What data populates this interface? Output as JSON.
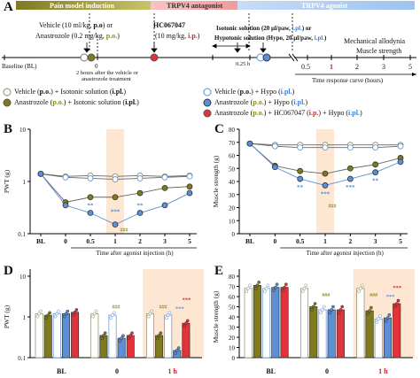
{
  "panelA": {
    "letter": "A",
    "bar_pain": "Pain model induction",
    "bar_antag": "TRPV4 antagonist",
    "bar_agon": "TRPV4 agonist",
    "veh_line1": "Vehicle (10 ml/kg, p.o) or",
    "veh_line2": "Anastrozole (0.2 mg/kg, p.o.)",
    "hc_name": "HC067047",
    "hc_dose": "(10 mg/kg, i.p.)",
    "iso_line1": "Isotonic solution (20 µl/paw, i.pl.) or",
    "iso_line2": "Hypotonic solution (Hypo, 20 µl/paw, i.pl.)",
    "mech_line1": "Mechanical allodynia",
    "mech_line2": "Muscle strength",
    "baseline": "Baseline (BL)",
    "zero": "0",
    "note_line1": "2 hours after the vehicle or",
    "note_line2": "anastrozole treatment",
    "interval": "0.25 h",
    "ticks": [
      "0.5",
      "1",
      "2",
      "3",
      "5"
    ],
    "axis_label": "Time response curve (hours)"
  },
  "legend": {
    "veh_iso": "Vehicle (p.o.) + Isotonic solution (i.pl.)",
    "ana_iso": "Anastrozole (p.o.) + Isotonic solution (i.pl.)",
    "veh_hypo": "Vehicle (p.o.) + Hypo (i.pl.)",
    "ana_hypo": "Anastrozole (p.o.) + Hypo (i.pl.)",
    "ana_hc_hypo": "Anastrozole (p.o.) + HC067047 (i.p.) + Hypo (i.pl.)"
  },
  "colors": {
    "veh_iso": "#ffffff",
    "ana_iso": "#7f7a1e",
    "veh_hypo": "#ffffff",
    "ana_hypo": "#5b8fd6",
    "ana_hc_hypo": "#e2323a",
    "highlight": "#fde6d2"
  },
  "chart_data": [
    {
      "panel": "B",
      "type": "line",
      "ylabel": "PWT (g)",
      "xlabel": "Time after agonist injection (h)",
      "categories": [
        "BL",
        "0",
        "0.5",
        "1",
        "2",
        "3",
        "5"
      ],
      "yscale": "log",
      "ylim": [
        0.1,
        10
      ],
      "yticks": [
        "0.1",
        "1",
        "10"
      ],
      "series": [
        {
          "key": "veh_iso",
          "values": [
            1.4,
            1.25,
            1.3,
            1.25,
            1.3,
            1.25,
            1.3
          ]
        },
        {
          "key": "veh_hypo",
          "values": [
            1.4,
            1.2,
            1.15,
            1.1,
            1.15,
            1.2,
            1.25
          ]
        },
        {
          "key": "ana_iso",
          "values": [
            1.4,
            0.4,
            0.5,
            0.5,
            0.6,
            0.75,
            0.8
          ]
        },
        {
          "key": "ana_hypo",
          "values": [
            1.4,
            0.35,
            0.25,
            0.15,
            0.25,
            0.35,
            0.6
          ]
        }
      ],
      "annotations": [
        "***",
        "###",
        "**",
        "**"
      ]
    },
    {
      "panel": "C",
      "type": "line",
      "ylabel": "Muscle strength (g)",
      "xlabel": "Time after agonist injection (h)",
      "categories": [
        "BL",
        "0",
        "0.5",
        "1",
        "2",
        "3",
        "5"
      ],
      "ylim": [
        0,
        80
      ],
      "yticks": [
        "0",
        "10",
        "20",
        "30",
        "40",
        "50",
        "60",
        "70",
        "80"
      ],
      "series": [
        {
          "key": "veh_iso",
          "values": [
            69,
            68,
            68,
            68,
            68,
            68,
            68
          ]
        },
        {
          "key": "veh_hypo",
          "values": [
            69,
            67,
            66,
            66,
            66,
            66,
            67
          ]
        },
        {
          "key": "ana_iso",
          "values": [
            69,
            52,
            48,
            46,
            50,
            53,
            58
          ]
        },
        {
          "key": "ana_hypo",
          "values": [
            69,
            51,
            42,
            37,
            42,
            47,
            55
          ]
        }
      ],
      "annotations": [
        "**",
        "***",
        "***",
        "**",
        "###"
      ]
    },
    {
      "panel": "D",
      "type": "bar",
      "ylabel": "PWT (g)",
      "groups": [
        "BL",
        "0",
        "1 h"
      ],
      "yscale": "log",
      "ylim": [
        0.1,
        10
      ],
      "yticks": [
        "0.1",
        "1",
        "10"
      ],
      "series": [
        {
          "key": "veh_iso",
          "values": [
            1.2,
            1.2,
            1.2
          ]
        },
        {
          "key": "ana_iso",
          "values": [
            1.1,
            0.35,
            0.35
          ]
        },
        {
          "key": "veh_hypo",
          "values": [
            1.2,
            1.1,
            1.1
          ]
        },
        {
          "key": "ana_hypo",
          "values": [
            1.2,
            0.3,
            0.15
          ]
        },
        {
          "key": "ana_hc_hypo",
          "values": [
            1.3,
            0.35,
            0.7
          ]
        }
      ],
      "annotations": [
        "###",
        "###",
        "***",
        "***"
      ]
    },
    {
      "panel": "E",
      "type": "bar",
      "ylabel": "Muscle strength (g)",
      "groups": [
        "BL",
        "0",
        "1 h"
      ],
      "ylim": [
        0,
        80
      ],
      "yticks": [
        "0",
        "10",
        "20",
        "30",
        "40",
        "50",
        "60",
        "70",
        "80"
      ],
      "series": [
        {
          "key": "veh_iso",
          "values": [
            68,
            68,
            68
          ]
        },
        {
          "key": "ana_iso",
          "values": [
            71,
            50,
            46
          ]
        },
        {
          "key": "veh_hypo",
          "values": [
            68,
            47,
            38
          ]
        },
        {
          "key": "ana_hypo",
          "values": [
            69,
            47,
            39
          ]
        },
        {
          "key": "ana_hc_hypo",
          "values": [
            69,
            47,
            53
          ]
        }
      ],
      "annotations": [
        "###",
        "###",
        "***",
        "***"
      ]
    }
  ],
  "letters": {
    "B": "B",
    "C": "C",
    "D": "D",
    "E": "E"
  }
}
